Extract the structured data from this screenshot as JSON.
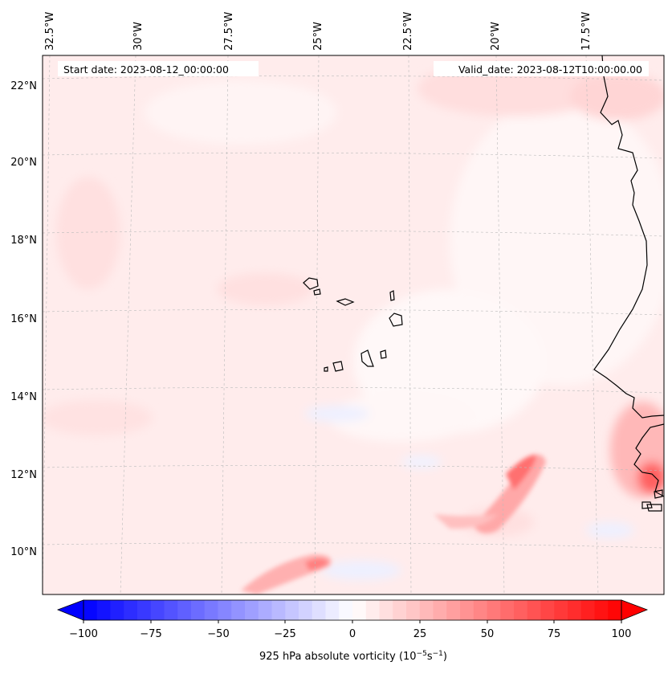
{
  "map": {
    "start_label": "Start date: 2023-08-12_00:00:00",
    "valid_label": "Valid_date: 2023-08-12T10:00:00.00",
    "lon_labels": [
      "32.5°W",
      "30°W",
      "27.5°W",
      "25°W",
      "22.5°W",
      "20°W",
      "17.5°W"
    ],
    "lat_labels": [
      "22°N",
      "20°N",
      "18°N",
      "16°N",
      "14°N",
      "12°N",
      "10°N"
    ],
    "gridlines": true,
    "colormap": "bwr",
    "colors": {
      "negative": "#0000ff",
      "zero": "#ffffff",
      "positive": "#ff0000",
      "coastline": "#000000"
    }
  },
  "colorbar": {
    "ticks": [
      "−100",
      "−75",
      "−50",
      "−25",
      "0",
      "25",
      "50",
      "75",
      "100"
    ],
    "range": [
      -100,
      100
    ],
    "label_main": "925 hPa absolute vorticity (10",
    "label_exp1": "−5",
    "label_mid": "s",
    "label_exp2": "−1",
    "label_end": ")"
  }
}
